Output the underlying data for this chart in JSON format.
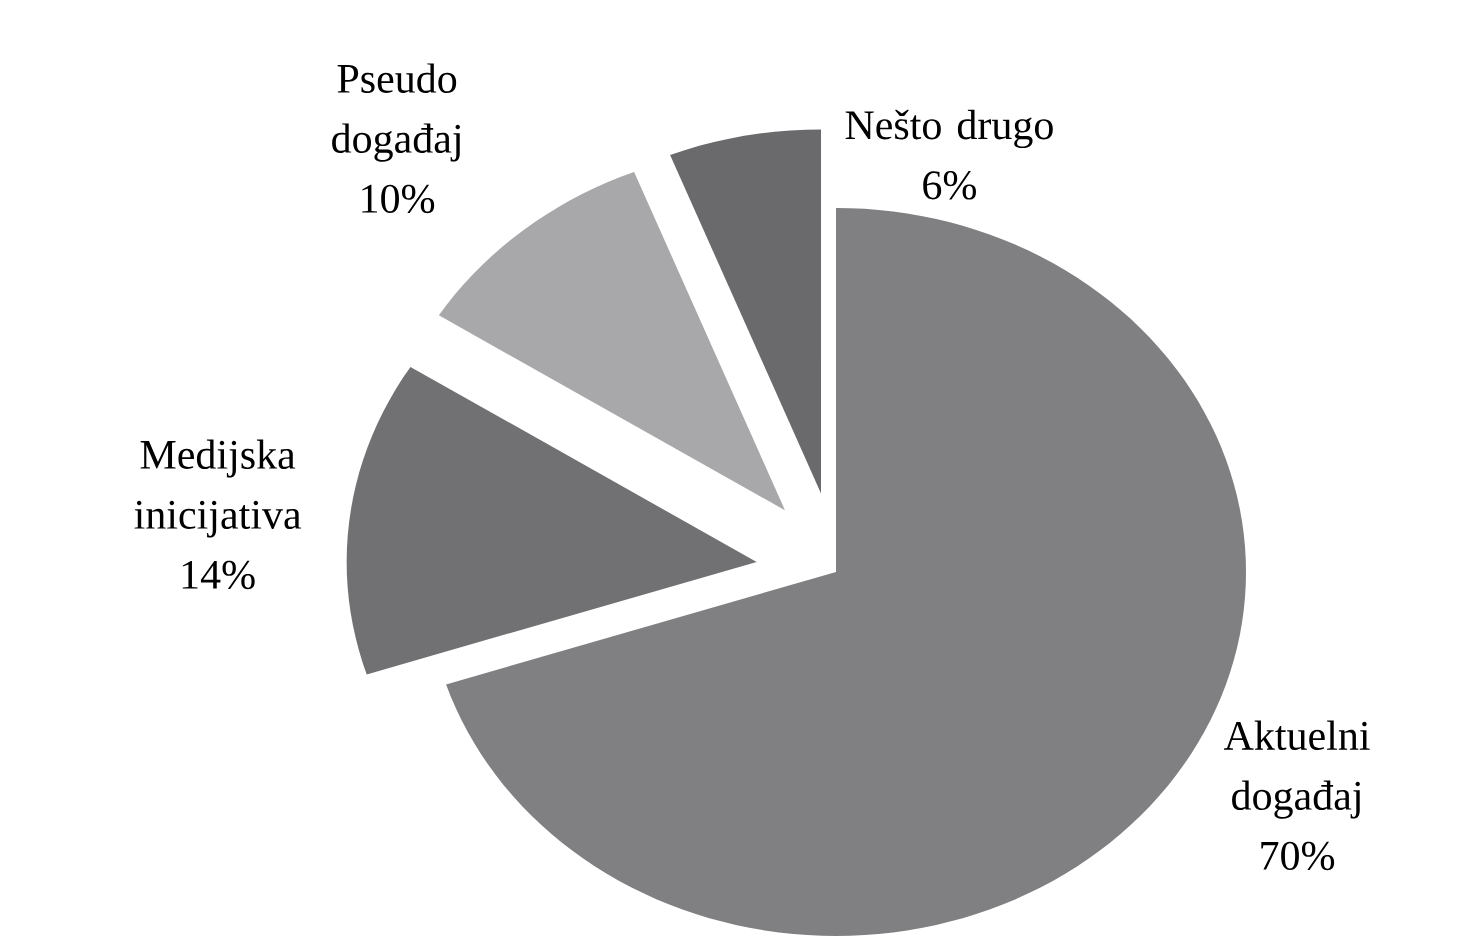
{
  "chart_data": {
    "type": "pie",
    "categories": [
      "Aktuelni događaj",
      "Medijska inicijativa",
      "Pseudo događaj",
      "Nešto drugo"
    ],
    "values": [
      70,
      14,
      10,
      6
    ],
    "value_labels": [
      "70%",
      "14%",
      "10%",
      "6%"
    ],
    "colors": [
      "#808083",
      "#717174",
      "#a8a8aa",
      "#6a6a6d"
    ]
  }
}
